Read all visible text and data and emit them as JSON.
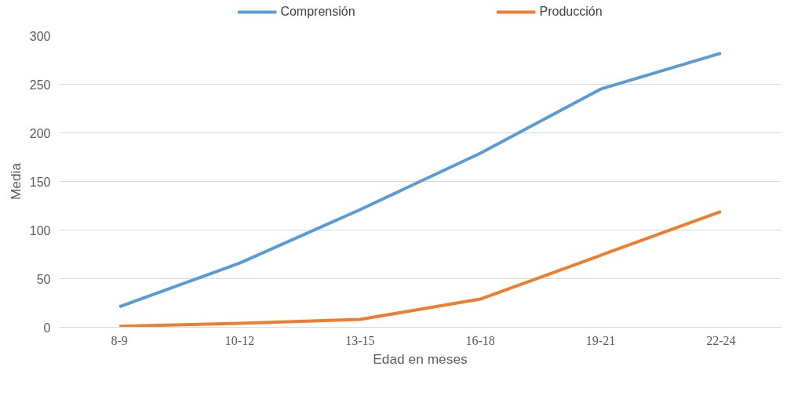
{
  "chart_data": {
    "type": "line",
    "xlabel": "Edad en meses",
    "ylabel": "Media",
    "categories": [
      "8-9",
      "10-12",
      "13-15",
      "16-18",
      "19-21",
      "22-24"
    ],
    "series": [
      {
        "name": "Comprensión",
        "color": "#5b9bd5",
        "values": [
          21,
          66,
          121,
          179,
          245,
          282
        ]
      },
      {
        "name": "Producción",
        "color": "#ed7d31",
        "values": [
          1,
          4,
          8,
          29,
          74,
          119
        ]
      }
    ],
    "ylim": [
      0,
      300
    ],
    "yticks": [
      0,
      50,
      100,
      150,
      200,
      250,
      300
    ],
    "grid": "y",
    "legend": "top",
    "marker": "none",
    "line_style": "solid"
  }
}
